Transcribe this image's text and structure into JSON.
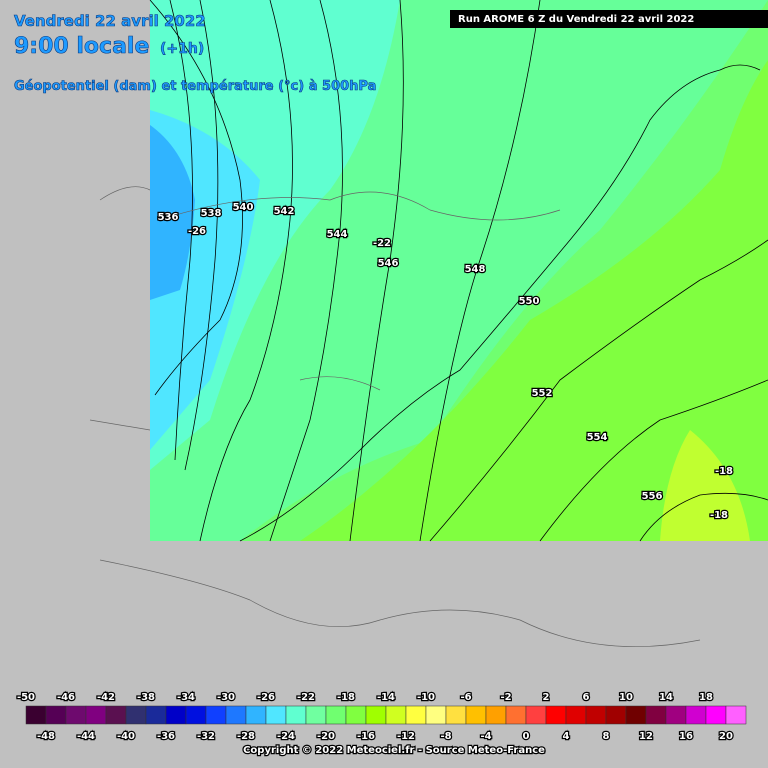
{
  "header": {
    "date": "Vendredi 22 avril 2022",
    "time": "9:00 locale",
    "offset": "(+1h)",
    "field": "Géopotentiel (dam) et température (°c) à 500hPa",
    "run": "Run AROME 6 Z du Vendredi 22 avril 2022"
  },
  "map": {
    "geopotential_labels": [
      536,
      538,
      540,
      542,
      544,
      546,
      548,
      550,
      552,
      554,
      556
    ],
    "temperature_labels": [
      -26,
      -22,
      -18,
      -18
    ]
  },
  "legend": {
    "top_labels": [
      -50,
      -46,
      -42,
      -38,
      -34,
      -30,
      -26,
      -22,
      -18,
      -14,
      -10,
      -6,
      -2,
      2,
      6,
      10,
      14,
      18
    ],
    "bottom_labels": [
      -48,
      -44,
      -40,
      -36,
      -32,
      -28,
      -24,
      -20,
      -16,
      -12,
      -8,
      -4,
      0,
      4,
      8,
      12,
      16,
      20
    ],
    "colors": [
      "#3a0030",
      "#550055",
      "#6e0a6e",
      "#800080",
      "#5a1050",
      "#303070",
      "#1a2a9a",
      "#0000c8",
      "#0010e0",
      "#1040ff",
      "#1e78ff",
      "#30b4ff",
      "#50e6ff",
      "#60ffd0",
      "#70ffa0",
      "#70ff70",
      "#80ff40",
      "#a0ff00",
      "#d0ff20",
      "#ffff40",
      "#ffff80",
      "#ffe040",
      "#ffc000",
      "#ffa000",
      "#ff7030",
      "#ff4040",
      "#ff0000",
      "#e00000",
      "#c00000",
      "#a00000",
      "#700000",
      "#800040",
      "#a00080",
      "#d000d0",
      "#ff00ff",
      "#ff60ff"
    ]
  },
  "footer": {
    "copyright": "Copyright © 2022 Meteociel.fr - Source Meteo-France"
  }
}
